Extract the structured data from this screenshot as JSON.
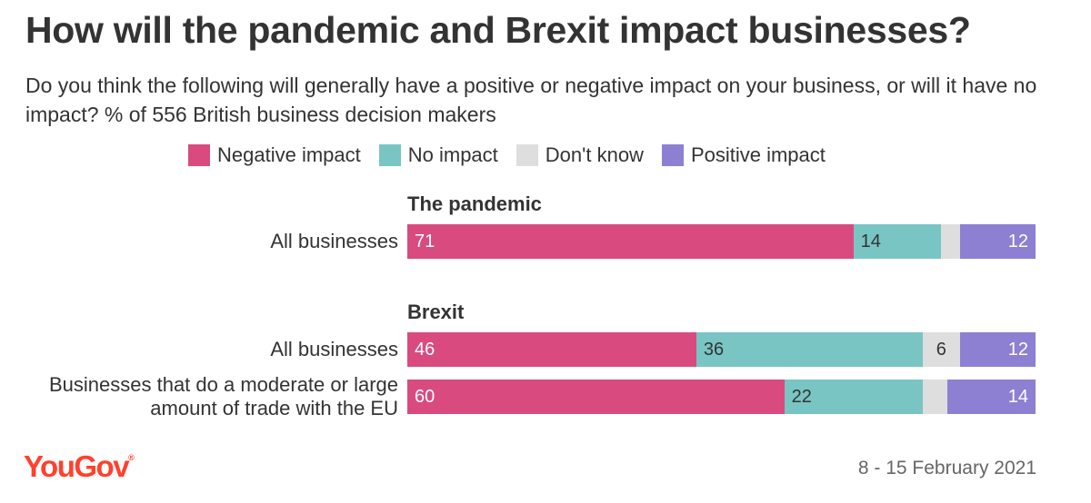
{
  "title": "How will the pandemic and Brexit impact businesses?",
  "subtitle": "Do you think the following will generally have a positive or negative impact on your business, or will it have no impact? % of 556 British business decision makers",
  "legend": [
    {
      "label": "Negative impact",
      "color": "#d94b7f"
    },
    {
      "label": "No impact",
      "color": "#79c5c4"
    },
    {
      "label": "Don't know",
      "color": "#dedede"
    },
    {
      "label": "Positive impact",
      "color": "#8d80d2"
    }
  ],
  "chart_data": {
    "type": "bar",
    "orientation": "horizontal",
    "stacked": true,
    "categories_order": [
      "Negative impact",
      "No impact",
      "Don't know",
      "Positive impact"
    ],
    "sections": [
      {
        "title": "The pandemic",
        "rows": [
          {
            "label": "All businesses",
            "values": [
              71,
              14,
              3,
              12
            ],
            "labels": [
              "71",
              "14",
              "",
              "12"
            ]
          }
        ]
      },
      {
        "title": "Brexit",
        "rows": [
          {
            "label": "All businesses",
            "values": [
              46,
              36,
              6,
              12
            ],
            "labels": [
              "46",
              "36",
              "6",
              "12"
            ]
          },
          {
            "label": "Businesses that do a moderate or large amount of trade with the EU",
            "values": [
              60,
              22,
              4,
              14
            ],
            "labels": [
              "60",
              "22",
              "",
              "14"
            ]
          }
        ]
      }
    ]
  },
  "footer": {
    "brand": "YouGov",
    "brand_mark": "®",
    "date": "8 - 15 February 2021"
  }
}
